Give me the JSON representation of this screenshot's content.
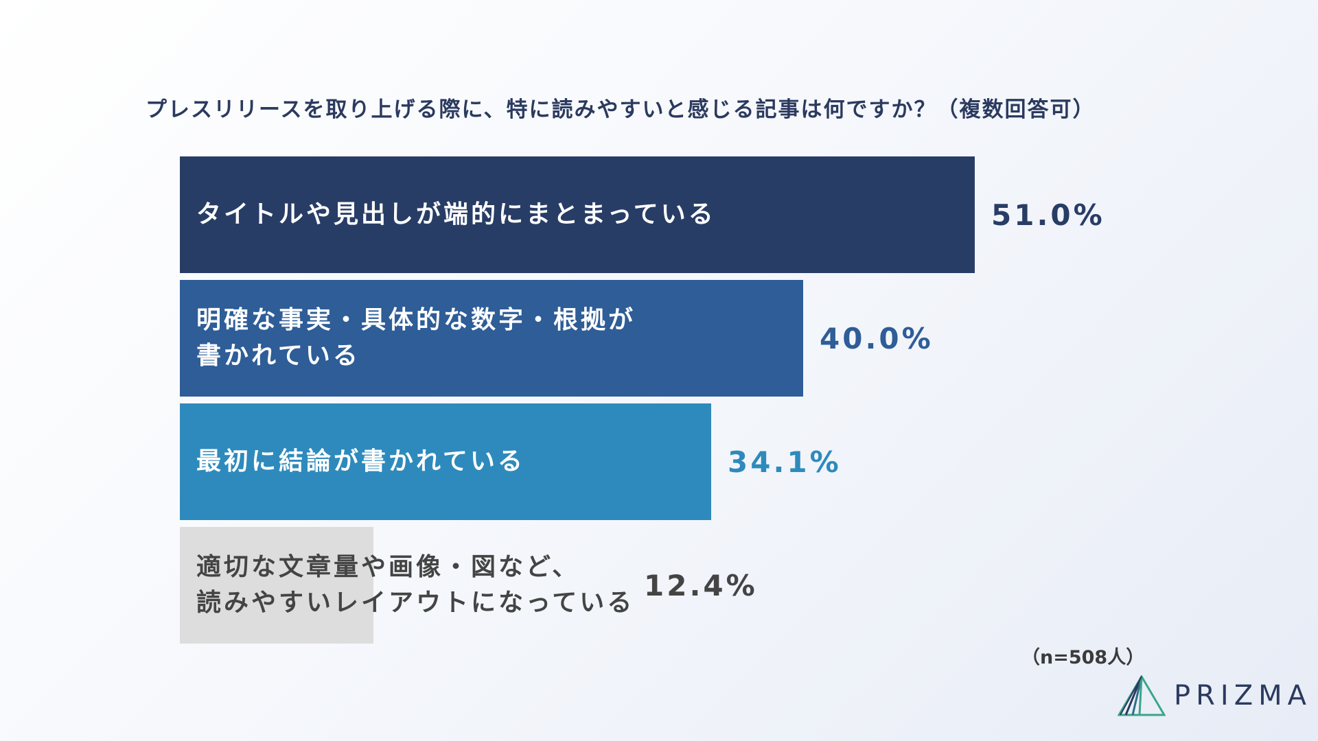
{
  "chart_data": {
    "type": "bar",
    "orientation": "horizontal",
    "title": "プレスリリースを取り上げる際に、特に読みやすいと感じる記事は何ですか？（複数回答可）",
    "categories": [
      "タイトルや見出しが端的にまとまっている",
      "明確な事実・具体的な数字・根拠が\n書かれている",
      "最初に結論が書かれている",
      "適切な文章量や画像・図など、\n読みやすいレイアウトになっている"
    ],
    "values": [
      51.0,
      40.0,
      34.1,
      12.4
    ],
    "value_labels": [
      "51.0%",
      "40.0%",
      "34.1%",
      "12.4%"
    ],
    "xlim": [
      0,
      60
    ],
    "colors": [
      "#283d66",
      "#2e5d97",
      "#2e8abc",
      "#dddddd"
    ],
    "label_colors": [
      "#ffffff",
      "#ffffff",
      "#ffffff",
      "#444444"
    ],
    "value_colors": [
      "#283d66",
      "#2e5d97",
      "#2e8abc",
      "#444444"
    ],
    "grid": false,
    "legend": "none"
  },
  "footer": {
    "sample_size": "（n=508人）",
    "brand": "PRIZMA"
  },
  "logo": {
    "icon": "prizma-prism-icon",
    "colors": [
      "#2b3a5e",
      "#3aa58a"
    ]
  }
}
